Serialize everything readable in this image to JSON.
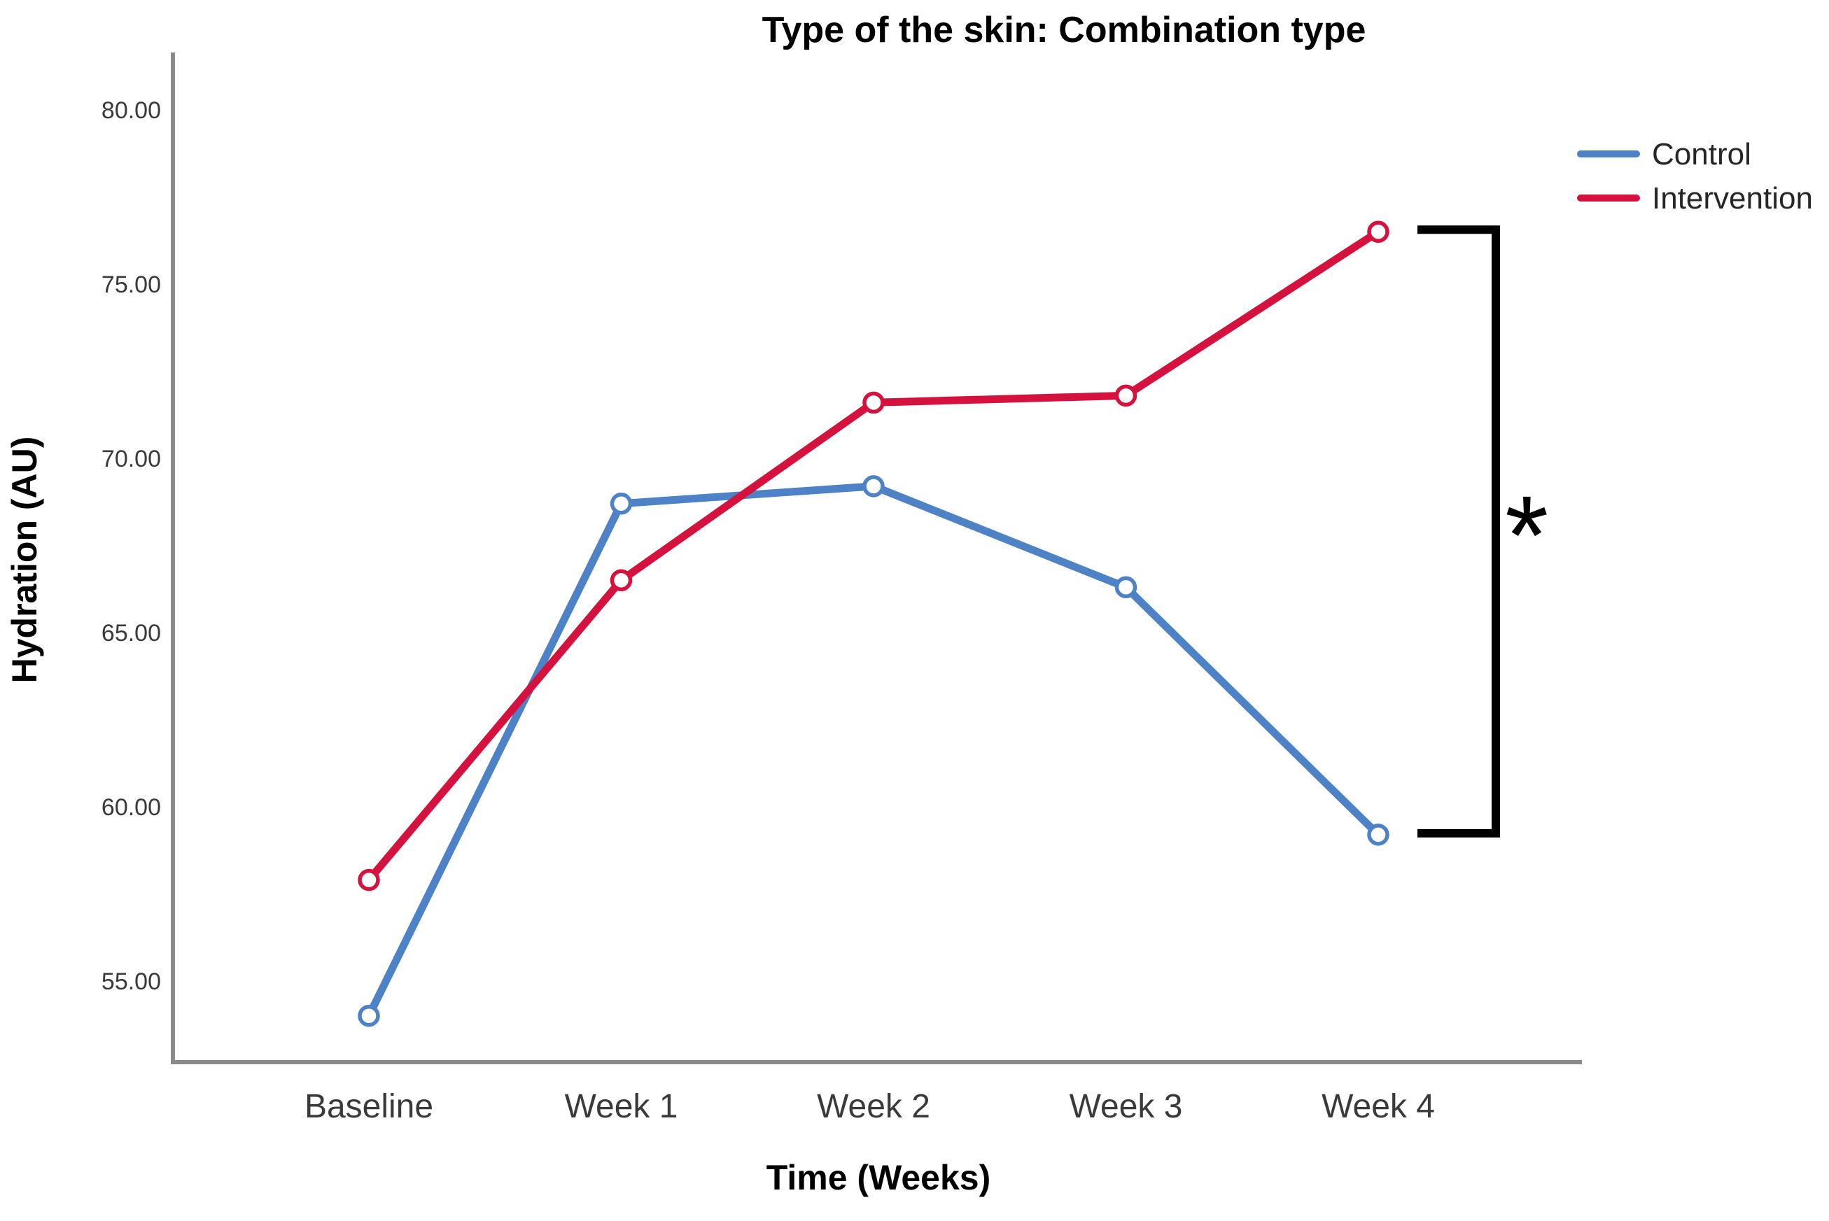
{
  "figure": {
    "background": "#ffffff"
  },
  "chart_data": {
    "type": "line",
    "title": "Type of the skin: Combination type",
    "xlabel": "Time (Weeks)",
    "ylabel": "Hydration (AU)",
    "categories": [
      "Baseline",
      "Week 1",
      "Week 2",
      "Week 3",
      "Week 4"
    ],
    "series": [
      {
        "name": "Control",
        "color": "#4D82C6",
        "values": [
          54.0,
          68.7,
          69.2,
          66.3,
          59.2
        ]
      },
      {
        "name": "Intervention",
        "color": "#D5123E",
        "values": [
          57.9,
          66.5,
          71.6,
          71.8,
          76.5
        ]
      }
    ],
    "yticks": [
      55,
      60,
      65,
      70,
      75,
      80
    ],
    "ytick_labels": [
      "55.00",
      "60.00",
      "65.00",
      "70.00",
      "75.00",
      "80.00"
    ],
    "ylim": [
      52.6,
      81.6
    ],
    "grid": false,
    "legend_position": "top-right",
    "marker": "open-circle",
    "significance": {
      "symbol": "*",
      "at_category": "Week 4",
      "between": [
        "Intervention",
        "Control"
      ]
    }
  },
  "colors": {
    "axis": "#8a8a8a",
    "tick_text": "#3a3a3a",
    "bracket": "#000000"
  }
}
